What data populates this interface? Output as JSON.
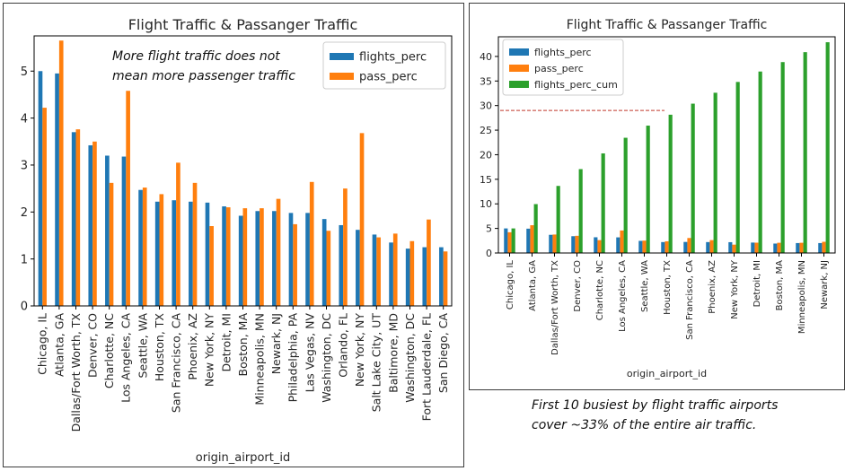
{
  "colors": {
    "flights": "#1f77b4",
    "pass": "#ff7f0e",
    "cum": "#2ca02c",
    "guide": "#c0392b"
  },
  "notes": {
    "left": [
      "More flight traffic does not",
      "mean more passenger traffic"
    ],
    "right": [
      "First 10 busiest by flight traffic airports",
      "cover ~33% of the entire air traffic."
    ]
  },
  "chart_data": [
    {
      "type": "bar",
      "title": "Flight Traffic & Passanger Traffic",
      "xlabel": "origin_airport_id",
      "ylabel": "",
      "ylim": [
        0,
        5.75
      ],
      "yticks": [
        0,
        1,
        2,
        3,
        4,
        5
      ],
      "legend_position": "top-right",
      "grid": false,
      "categories": [
        "Chicago, IL",
        "Atlanta, GA",
        "Dallas/Fort Worth, TX",
        "Denver, CO",
        "Charlotte, NC",
        "Los Angeles, CA",
        "Seattle, WA",
        "Houston, TX",
        "San Francisco, CA",
        "Phoenix, AZ",
        "New York, NY",
        "Detroit, MI",
        "Boston, MA",
        "Minneapolis, MN",
        "Newark, NJ",
        "Philadelphia, PA",
        "Las Vegas, NV",
        "Washington, DC",
        "Orlando, FL",
        "New York, NY",
        "Salt Lake City, UT",
        "Baltimore, MD",
        "Washington, DC",
        "Fort Lauderdale, FL",
        "San Diego, CA"
      ],
      "series": [
        {
          "name": "flights_perc",
          "values": [
            5.0,
            4.95,
            3.7,
            3.42,
            3.2,
            3.18,
            2.47,
            2.22,
            2.25,
            2.22,
            2.2,
            2.12,
            1.92,
            2.02,
            2.02,
            1.98,
            1.98,
            1.85,
            1.72,
            1.62,
            1.52,
            1.35,
            1.22,
            1.25,
            1.25
          ]
        },
        {
          "name": "pass_perc",
          "values": [
            4.22,
            5.65,
            3.76,
            3.5,
            2.62,
            4.58,
            2.52,
            2.38,
            3.05,
            2.62,
            1.7,
            2.1,
            2.08,
            2.08,
            2.28,
            1.74,
            2.64,
            1.6,
            2.5,
            3.68,
            1.46,
            1.54,
            1.38,
            1.84,
            1.16
          ]
        }
      ]
    },
    {
      "type": "bar",
      "title": "Flight Traffic & Passanger Traffic",
      "xlabel": "origin_airport_id",
      "ylabel": "",
      "ylim": [
        0,
        44
      ],
      "yticks": [
        0,
        5,
        10,
        15,
        20,
        25,
        30,
        35,
        40
      ],
      "legend_position": "top-left",
      "grid": false,
      "reference_line_y": 29,
      "categories": [
        "Chicago, IL",
        "Atlanta, GA",
        "Dallas/Fort Worth, TX",
        "Denver, CO",
        "Charlotte, NC",
        "Los Angeles, CA",
        "Seattle, WA",
        "Houston, TX",
        "San Francisco, CA",
        "Phoenix, AZ",
        "New York, NY",
        "Detroit, MI",
        "Boston, MA",
        "Minneapolis, MN",
        "Newark, NJ"
      ],
      "series": [
        {
          "name": "flights_perc",
          "values": [
            5.0,
            4.95,
            3.7,
            3.42,
            3.2,
            3.18,
            2.47,
            2.22,
            2.25,
            2.22,
            2.2,
            2.12,
            1.92,
            2.02,
            2.02
          ]
        },
        {
          "name": "pass_perc",
          "values": [
            4.22,
            5.65,
            3.76,
            3.5,
            2.62,
            4.58,
            2.52,
            2.38,
            3.05,
            2.62,
            1.7,
            2.1,
            2.08,
            2.08,
            2.28
          ]
        },
        {
          "name": "flights_perc_cum",
          "values": [
            5.0,
            9.95,
            13.65,
            17.07,
            20.27,
            23.45,
            25.92,
            28.14,
            30.39,
            32.61,
            34.81,
            36.93,
            38.85,
            40.87,
            42.89
          ]
        }
      ]
    }
  ]
}
